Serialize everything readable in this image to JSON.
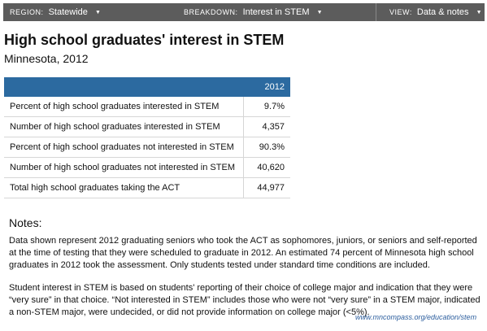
{
  "toolbar": {
    "region": {
      "key": "REGION:",
      "value": "Statewide"
    },
    "breakdown": {
      "key": "BREAKDOWN:",
      "value": "Interest in STEM"
    },
    "view": {
      "key": "VIEW:",
      "value": "Data & notes"
    },
    "caret": "▼"
  },
  "header": {
    "title": "High school graduates' interest in STEM",
    "subtitle": "Minnesota, 2012"
  },
  "table": {
    "column": "2012",
    "rows": [
      {
        "label": "Percent of high school graduates interested in STEM",
        "value": "9.7%"
      },
      {
        "label": "Number of high school graduates interested in STEM",
        "value": "4,357"
      },
      {
        "label": "Percent of high school graduates not interested in STEM",
        "value": "90.3%"
      },
      {
        "label": "Number of high school graduates not interested in STEM",
        "value": "40,620"
      },
      {
        "label": "Total high school graduates taking the ACT",
        "value": "44,977"
      }
    ]
  },
  "notes": {
    "heading": "Notes:",
    "paragraphs": [
      "Data shown represent 2012 graduating seniors who took the ACT as sophomores, juniors, or seniors and self-reported at the time of testing that they were scheduled to graduate in 2012. An estimated 74 percent of Minnesota high school graduates in 2012 took the assessment. Only students tested under standard time conditions are included.",
      "Student interest in STEM is based on students' reporting of their choice of college major and indication that they were “very sure” in that choice. “Not interested in STEM” includes those who were not “very sure” in a STEM major, indicated a non-STEM major, were undecided, or did not provide information on college major (<5%)."
    ]
  },
  "source": "www.mncompass.org/education/stem"
}
